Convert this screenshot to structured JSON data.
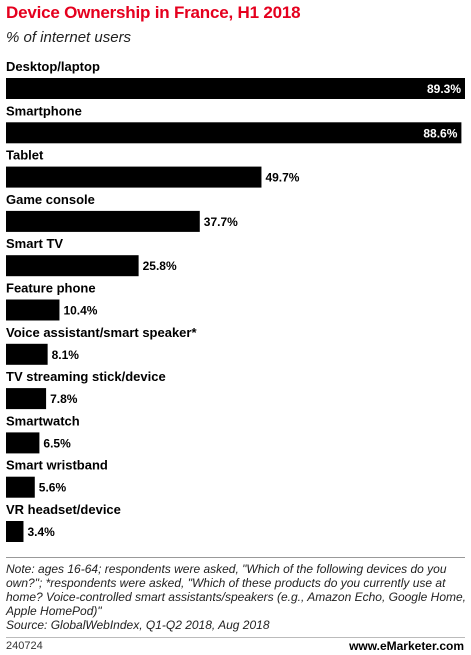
{
  "header": {
    "title": "Device Ownership in France, H1 2018",
    "subtitle": "% of internet users"
  },
  "chart_data": {
    "type": "bar",
    "orientation": "horizontal",
    "categories": [
      "Desktop/laptop",
      "Smartphone",
      "Tablet",
      "Game console",
      "Smart TV",
      "Feature phone",
      "Voice assistant/smart speaker*",
      "TV streaming stick/device",
      "Smartwatch",
      "Smart wristband",
      "VR headset/device"
    ],
    "values": [
      89.3,
      88.6,
      49.7,
      37.7,
      25.8,
      10.4,
      8.1,
      7.8,
      6.5,
      5.6,
      3.4
    ],
    "value_labels": [
      "89.3%",
      "88.6%",
      "49.7%",
      "37.7%",
      "25.8%",
      "10.4%",
      "8.1%",
      "7.8%",
      "6.5%",
      "5.6%",
      "3.4%"
    ],
    "xlim": [
      0,
      89.3
    ],
    "bar_color": "#000000",
    "grid": false,
    "legend": "none"
  },
  "footer": {
    "note": "Note: ages 16-64; respondents were asked, \"Which of the following devices do you own?\"; *respondents were asked, \"Which of these products do you currently use at home? Voice-controlled smart assistants/speakers (e.g., Amazon Echo, Google Home, Apple HomePod)\"",
    "source": "Source: GlobalWebIndex, Q1-Q2 2018, Aug 2018",
    "chart_id": "240724",
    "brand": "www.eMarketer.com"
  }
}
